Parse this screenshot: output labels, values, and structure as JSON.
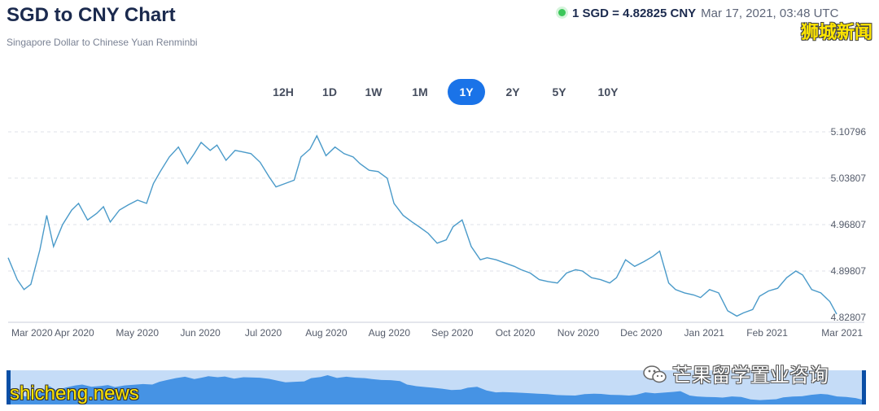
{
  "header": {
    "title": "SGD to CNY Chart",
    "subtitle": "Singapore Dollar to Chinese Yuan Renminbi",
    "rate": "1 SGD = 4.82825 CNY",
    "timestamp": "Mar 17, 2021, 03:48 UTC",
    "live_color": "#3cc75a"
  },
  "watermarks": {
    "top_right": "狮城新闻",
    "bottom_left": "shicheng.news",
    "bottom_right": "芒果留学置业咨询",
    "bottom_right_icon": "wechat-icon"
  },
  "tabs": [
    {
      "label": "12H",
      "active": false
    },
    {
      "label": "1D",
      "active": false
    },
    {
      "label": "1W",
      "active": false
    },
    {
      "label": "1M",
      "active": false
    },
    {
      "label": "1Y",
      "active": true
    },
    {
      "label": "2Y",
      "active": false
    },
    {
      "label": "5Y",
      "active": false
    },
    {
      "label": "10Y",
      "active": false
    }
  ],
  "chart_data": {
    "type": "line",
    "line_color": "#4a9ac9",
    "navigator_fill": "#2f86e0",
    "navigator_bg": "#c5dcf7",
    "x_range": [
      "2020-03-17",
      "2021-03-17"
    ],
    "x_tick_labels": [
      "Mar 2020",
      "Apr 2020",
      "May 2020",
      "Jun 2020",
      "Jul 2020",
      "Aug 2020",
      "Aug 2020",
      "Sep 2020",
      "Oct 2020",
      "Nov 2020",
      "Dec 2020",
      "Jan 2021",
      "Feb 2021",
      "Mar 2021"
    ],
    "y_tick_labels": [
      "5.10796",
      "5.03807",
      "4.96807",
      "4.89807",
      "4.82807"
    ],
    "ylim": [
      4.82807,
      5.10796
    ],
    "grid": "horizontal-dashed",
    "series": [
      {
        "x": [
          "2020-03-17",
          "2020-03-21",
          "2020-03-24",
          "2020-03-27",
          "2020-03-31",
          "2020-04-03",
          "2020-04-06",
          "2020-04-10",
          "2020-04-14",
          "2020-04-17",
          "2020-04-21",
          "2020-04-25",
          "2020-04-28",
          "2020-05-01",
          "2020-05-05",
          "2020-05-09",
          "2020-05-13",
          "2020-05-17",
          "2020-05-20",
          "2020-05-23",
          "2020-05-27",
          "2020-05-31",
          "2020-06-04",
          "2020-06-07",
          "2020-06-10",
          "2020-06-14",
          "2020-06-17",
          "2020-06-21",
          "2020-06-25",
          "2020-06-28",
          "2020-07-02",
          "2020-07-06",
          "2020-07-10",
          "2020-07-13",
          "2020-07-17",
          "2020-07-21",
          "2020-07-24",
          "2020-07-28",
          "2020-07-31",
          "2020-08-04",
          "2020-08-08",
          "2020-08-12",
          "2020-08-16",
          "2020-08-19",
          "2020-08-23",
          "2020-08-27",
          "2020-08-31",
          "2020-09-03",
          "2020-09-07",
          "2020-09-11",
          "2020-09-14",
          "2020-09-18",
          "2020-09-22",
          "2020-09-26",
          "2020-09-29",
          "2020-10-03",
          "2020-10-07",
          "2020-10-11",
          "2020-10-14",
          "2020-10-18",
          "2020-10-22",
          "2020-10-26",
          "2020-10-29",
          "2020-11-02",
          "2020-11-06",
          "2020-11-10",
          "2020-11-14",
          "2020-11-18",
          "2020-11-22",
          "2020-11-25",
          "2020-11-29",
          "2020-12-03",
          "2020-12-07",
          "2020-12-10",
          "2020-12-14",
          "2020-12-18",
          "2020-12-22",
          "2020-12-26",
          "2020-12-29",
          "2021-01-02",
          "2021-01-05",
          "2021-01-09",
          "2021-01-13",
          "2021-01-16",
          "2021-01-20",
          "2021-01-24",
          "2021-01-28",
          "2021-02-01",
          "2021-02-04",
          "2021-02-08",
          "2021-02-11",
          "2021-02-15",
          "2021-02-19",
          "2021-02-23",
          "2021-02-27",
          "2021-03-02",
          "2021-03-06",
          "2021-03-10",
          "2021-03-14",
          "2021-03-17"
        ],
        "values": [
          4.918,
          4.885,
          4.87,
          4.878,
          4.93,
          4.982,
          4.935,
          4.968,
          4.99,
          5.0,
          4.975,
          4.985,
          4.995,
          4.972,
          4.99,
          4.998,
          5.005,
          5.0,
          5.03,
          5.048,
          5.07,
          5.085,
          5.06,
          5.075,
          5.092,
          5.08,
          5.088,
          5.065,
          5.08,
          5.078,
          5.075,
          5.062,
          5.04,
          5.025,
          5.03,
          5.035,
          5.07,
          5.082,
          5.102,
          5.072,
          5.085,
          5.075,
          5.07,
          5.06,
          5.05,
          5.048,
          5.038,
          5.0,
          4.982,
          4.972,
          4.965,
          4.955,
          4.94,
          4.945,
          4.965,
          4.975,
          4.935,
          4.915,
          4.918,
          4.915,
          4.91,
          4.905,
          4.9,
          4.895,
          4.885,
          4.882,
          4.88,
          4.895,
          4.9,
          4.898,
          4.888,
          4.885,
          4.88,
          4.888,
          4.915,
          4.905,
          4.912,
          4.92,
          4.928,
          4.88,
          4.87,
          4.865,
          4.862,
          4.858,
          4.87,
          4.865,
          4.838,
          4.83,
          4.835,
          4.84,
          4.86,
          4.868,
          4.872,
          4.888,
          4.898,
          4.892,
          4.87,
          4.865,
          4.852,
          4.833
        ]
      }
    ]
  }
}
